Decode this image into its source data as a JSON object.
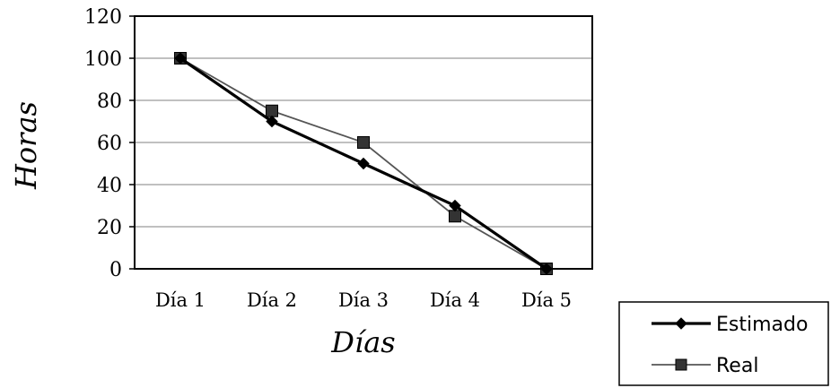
{
  "chart_data": {
    "type": "line",
    "title": "",
    "xlabel": "Días",
    "ylabel": "Horas",
    "categories": [
      "Día 1",
      "Día 2",
      "Día 3",
      "Día 4",
      "Día 5"
    ],
    "ylim": [
      0,
      120
    ],
    "yticks": [
      0,
      20,
      40,
      60,
      80,
      100,
      120
    ],
    "grid": true,
    "legend_position": "bottom-right",
    "series": [
      {
        "name": "Estimado",
        "values": [
          100,
          70,
          50,
          30,
          0
        ],
        "color": "#000000",
        "marker": "diamond"
      },
      {
        "name": "Real",
        "values": [
          100,
          75,
          60,
          25,
          0
        ],
        "color": "#555555",
        "marker": "square"
      }
    ]
  }
}
